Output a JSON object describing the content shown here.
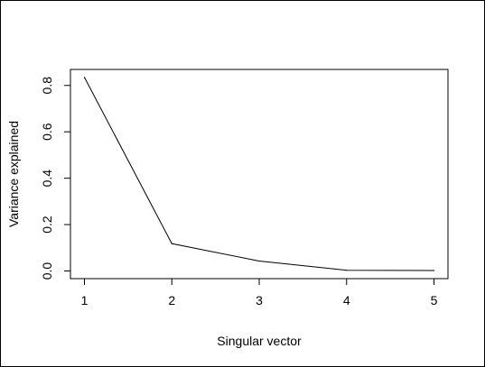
{
  "chart_data": {
    "type": "line",
    "title": "",
    "xlabel": "Singular vector",
    "ylabel": "Variance explained",
    "x": [
      1,
      2,
      3,
      4,
      5
    ],
    "series": [
      {
        "values": [
          0.835,
          0.118,
          0.043,
          0.003,
          0.002
        ]
      }
    ],
    "xticks": [
      "1",
      "2",
      "3",
      "4",
      "5"
    ],
    "yticks": [
      "0.0",
      "0.2",
      "0.4",
      "0.6",
      "0.8"
    ],
    "xlim": [
      0.84,
      5.16
    ],
    "ylim": [
      -0.033,
      0.869
    ],
    "line_color": "#000000",
    "grid": false,
    "legend": "none"
  }
}
